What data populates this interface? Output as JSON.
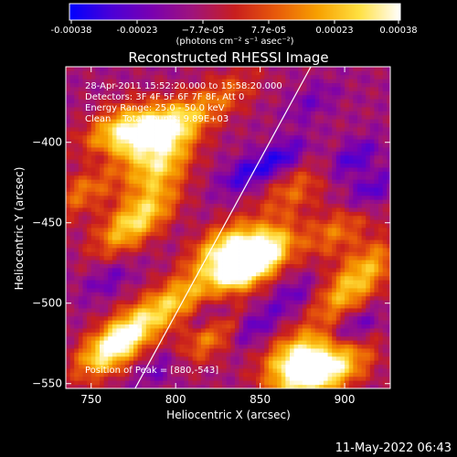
{
  "chart_data": {
    "type": "heatmap",
    "title": "Reconstructed RHESSI Image",
    "xlabel": "Heliocentric X (arcsec)",
    "ylabel": "Heliocentric Y (arcsec)",
    "xlim": [
      735,
      927
    ],
    "ylim": [
      -553,
      -353
    ],
    "x_ticks": [
      750,
      800,
      850,
      900
    ],
    "y_ticks": [
      -550,
      -500,
      -450,
      -400
    ],
    "x_tick_labels": [
      "750",
      "800",
      "850",
      "900"
    ],
    "y_tick_labels": [
      "−550",
      "−500",
      "−450",
      "−400"
    ],
    "info_lines": [
      "28-Apr-2011 15:52:20.000 to 15:58:20.000",
      "Detectors: 3F 4F 5F 6F 7F 8F, Att 0",
      "Energy Range: 25.0 - 50.0 keV",
      "Clean    Total counts: 9.89E+03"
    ],
    "peak_label": "Position of Peak = [880,-543]",
    "peak": [
      880,
      -543
    ],
    "limb_line": [
      [
        776,
        -553
      ],
      [
        880,
        -353
      ]
    ],
    "colorbar": {
      "range": [
        -0.00038,
        0.00038
      ],
      "tick_labels": [
        "-0.00038",
        "-0.00023",
        "−7.7e-05",
        "7.7e-05",
        "0.00023",
        "0.00038"
      ],
      "unit_text": "(photons cm⁻² s⁻¹ asec⁻²)",
      "stops": [
        "#0000ff",
        "#4a00d8",
        "#7a00b0",
        "#a0147a",
        "#c81e1e",
        "#e85a0a",
        "#f7a000",
        "#ffe040",
        "#ffffff"
      ]
    },
    "hotspots": [
      {
        "x": 840,
        "y": -477,
        "v": 1.0
      },
      {
        "x": 828,
        "y": -465,
        "v": 0.75
      },
      {
        "x": 852,
        "y": -468,
        "v": 0.7
      },
      {
        "x": 880,
        "y": -543,
        "v": 1.0
      },
      {
        "x": 870,
        "y": -532,
        "v": 0.75
      },
      {
        "x": 780,
        "y": -395,
        "v": 0.8
      },
      {
        "x": 800,
        "y": -390,
        "v": 0.7
      },
      {
        "x": 790,
        "y": -415,
        "v": 0.7
      },
      {
        "x": 763,
        "y": -392,
        "v": 0.6
      },
      {
        "x": 760,
        "y": -530,
        "v": 0.8
      },
      {
        "x": 775,
        "y": -515,
        "v": 0.6
      },
      {
        "x": 800,
        "y": -498,
        "v": 0.6
      },
      {
        "x": 820,
        "y": -520,
        "v": 0.55
      },
      {
        "x": 900,
        "y": -495,
        "v": 0.55
      },
      {
        "x": 915,
        "y": -475,
        "v": 0.5
      },
      {
        "x": 895,
        "y": -455,
        "v": 0.45
      },
      {
        "x": 870,
        "y": -430,
        "v": 0.4
      },
      {
        "x": 770,
        "y": -455,
        "v": 0.55
      },
      {
        "x": 785,
        "y": -440,
        "v": 0.5
      },
      {
        "x": 745,
        "y": -430,
        "v": 0.45
      },
      {
        "x": 830,
        "y": -370,
        "v": 0.35
      },
      {
        "x": 900,
        "y": -540,
        "v": 0.5
      }
    ],
    "coldspots": [
      {
        "x": 840,
        "y": -420,
        "v": 0.8
      },
      {
        "x": 862,
        "y": -410,
        "v": 0.9
      },
      {
        "x": 905,
        "y": -410,
        "v": 0.8
      },
      {
        "x": 915,
        "y": -430,
        "v": 0.75
      },
      {
        "x": 820,
        "y": -508,
        "v": 0.7
      },
      {
        "x": 845,
        "y": -515,
        "v": 0.7
      },
      {
        "x": 870,
        "y": -495,
        "v": 0.55
      },
      {
        "x": 905,
        "y": -515,
        "v": 0.7
      },
      {
        "x": 790,
        "y": -540,
        "v": 0.5
      },
      {
        "x": 760,
        "y": -485,
        "v": 0.5
      },
      {
        "x": 755,
        "y": -410,
        "v": 0.4
      },
      {
        "x": 880,
        "y": -375,
        "v": 0.45
      }
    ]
  },
  "footer": {
    "timestamp": "11-May-2022 06:43"
  }
}
